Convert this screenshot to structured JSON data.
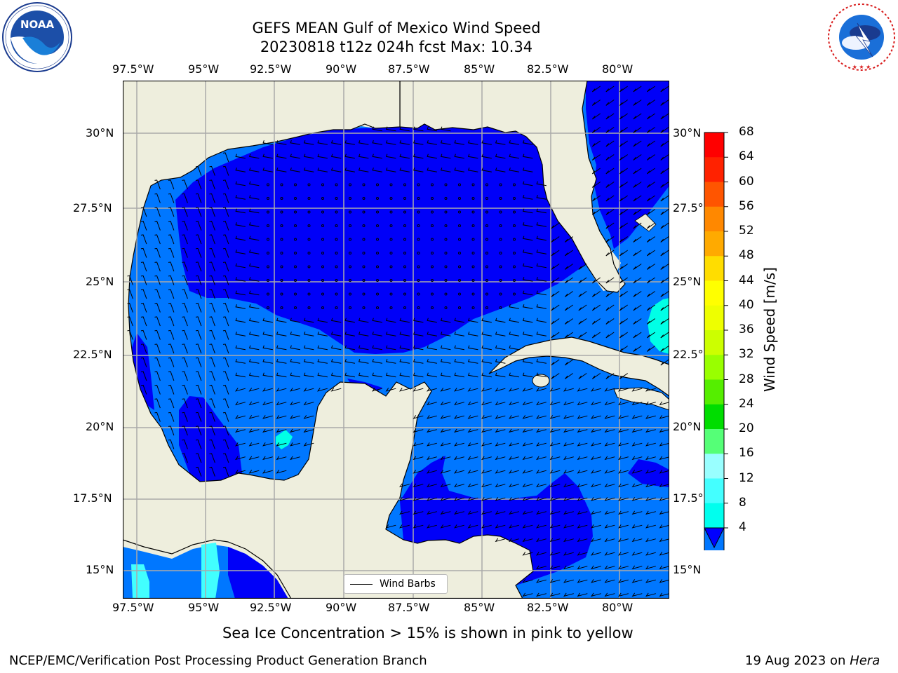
{
  "title": {
    "line1": "GEFS MEAN Gulf of Mexico Wind Speed",
    "line2": "20230818 t12z 024h fcst   Max: 10.34"
  },
  "logos": {
    "noaa": {
      "text": "NOAA",
      "ring_text": "NATIONAL OCEANIC AND ATMOSPHERIC ADMINISTRATION · U.S. DEPARTMENT OF COMMERCE"
    },
    "nws": {
      "ring_text": "NATIONAL WEATHER SERVICE"
    }
  },
  "map": {
    "lon_labels": [
      "97.5°W",
      "95°W",
      "92.5°W",
      "90°W",
      "87.5°W",
      "85°W",
      "82.5°W",
      "80°W"
    ],
    "lat_labels_left": [
      "30°N",
      "27.5°N",
      "25°N",
      "22.5°N",
      "20°N",
      "17.5°N",
      "15°N"
    ],
    "lat_labels_right": [
      "30°N",
      "27.5°N",
      "25°N",
      "22.5°N",
      "20°N",
      "17.5°N",
      "15°N"
    ],
    "legend_label": "Wind Barbs",
    "colors": {
      "land": "#eeeedd",
      "sea_4_8": "#0000f8",
      "sea_8_12": "#0077ff",
      "sea_12_16": "#00ffe6",
      "sea_16_20": "#42ffff"
    }
  },
  "colorbar": {
    "label": "Wind Speed [m/s]",
    "ticks": [
      "68",
      "64",
      "60",
      "56",
      "52",
      "48",
      "44",
      "40",
      "36",
      "32",
      "28",
      "24",
      "20",
      "16",
      "12",
      "8",
      "4"
    ],
    "colors": [
      "#ff0000",
      "#ff2200",
      "#ff5500",
      "#ff8800",
      "#ffaa00",
      "#ffdd00",
      "#ffff00",
      "#eeff00",
      "#ccff00",
      "#99ff00",
      "#55ee00",
      "#00dd00",
      "#55ff77",
      "#99ffff",
      "#44ffff",
      "#00ffee",
      "#0077ff"
    ],
    "extend_color": "#0000ff"
  },
  "footer": {
    "sea_ice": "Sea Ice Concentration > 15% is shown in pink to yellow",
    "branch": "NCEP/EMC/Verification Post Processing Product Generation Branch",
    "date": "19 Aug 2023 on",
    "machine": "Hera"
  }
}
